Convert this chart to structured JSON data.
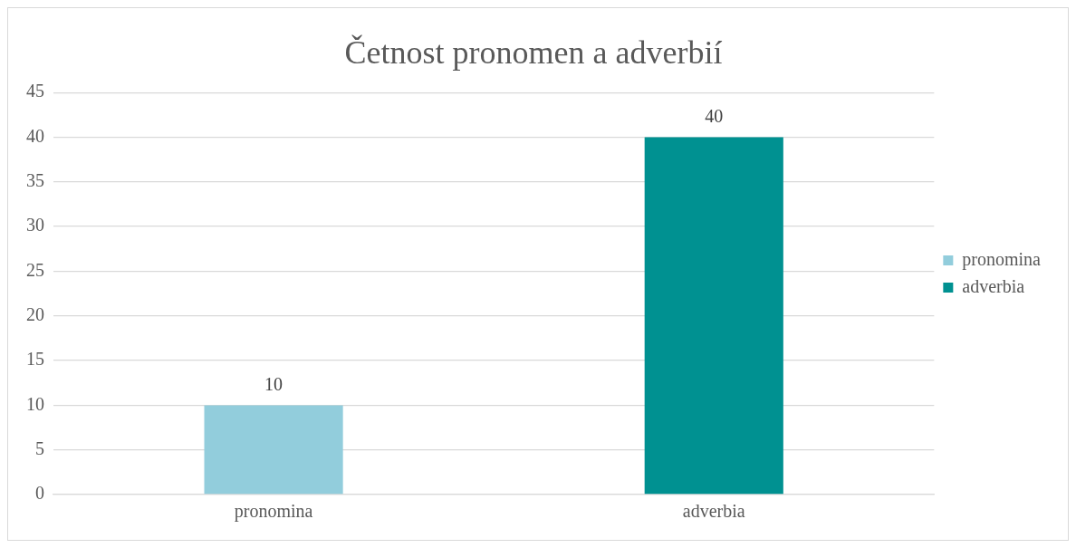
{
  "chart_data": {
    "type": "bar",
    "title": "Četnost pronomen a adverbií",
    "categories": [
      "pronomina",
      "adverbia"
    ],
    "series": [
      {
        "name": "pronomina",
        "color": "#92cddc",
        "values": [
          10,
          null
        ]
      },
      {
        "name": "adverbia",
        "color": "#009191",
        "values": [
          null,
          40
        ]
      }
    ],
    "ylim": [
      0,
      45
    ],
    "yticks": [
      0,
      5,
      10,
      15,
      20,
      25,
      30,
      35,
      40,
      45
    ],
    "grid": "y",
    "legend": "right",
    "data_labels": true
  }
}
